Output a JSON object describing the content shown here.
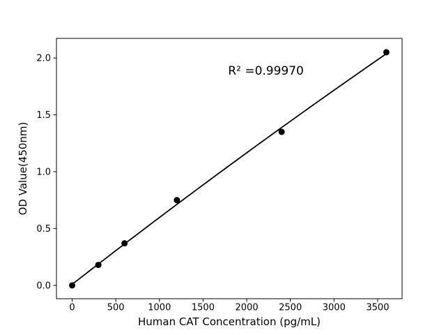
{
  "window": {
    "background": "#ffffff"
  },
  "chart_data": {
    "type": "scatter",
    "title": "",
    "xlabel": "Human CAT Concentration (pg/mL)",
    "ylabel": "OD Value(450nm)",
    "points": [
      {
        "x": 0,
        "y": 0.0
      },
      {
        "x": 300,
        "y": 0.18
      },
      {
        "x": 600,
        "y": 0.37
      },
      {
        "x": 1200,
        "y": 0.75
      },
      {
        "x": 2400,
        "y": 1.35
      },
      {
        "x": 3600,
        "y": 2.05
      }
    ],
    "fit_line": {
      "type": "quadratic-least-squares",
      "x_range": [
        0,
        3600
      ]
    },
    "annotation": {
      "text": "R² =0.99970",
      "x": 2220,
      "y": 1.89
    },
    "axes": {
      "xlim": [
        -180,
        3780
      ],
      "ylim": [
        -0.117,
        2.172
      ],
      "x_ticks": [
        {
          "value": 0,
          "label": "0"
        },
        {
          "value": 500,
          "label": "500"
        },
        {
          "value": 1000,
          "label": "1000"
        },
        {
          "value": 1500,
          "label": "1500"
        },
        {
          "value": 2000,
          "label": "2000"
        },
        {
          "value": 2500,
          "label": "2500"
        },
        {
          "value": 3000,
          "label": "3000"
        },
        {
          "value": 3500,
          "label": "3500"
        }
      ],
      "y_ticks": [
        {
          "value": 0.0,
          "label": "0.0"
        },
        {
          "value": 0.5,
          "label": "0.5"
        },
        {
          "value": 1.0,
          "label": "1.0"
        },
        {
          "value": 1.5,
          "label": "1.5"
        },
        {
          "value": 2.0,
          "label": "2.0"
        }
      ],
      "grid": false,
      "legend": null
    },
    "colors": {
      "marker": "#000000",
      "line": "#000000",
      "axis": "#000000",
      "text": "#000000",
      "background": "#ffffff"
    }
  }
}
